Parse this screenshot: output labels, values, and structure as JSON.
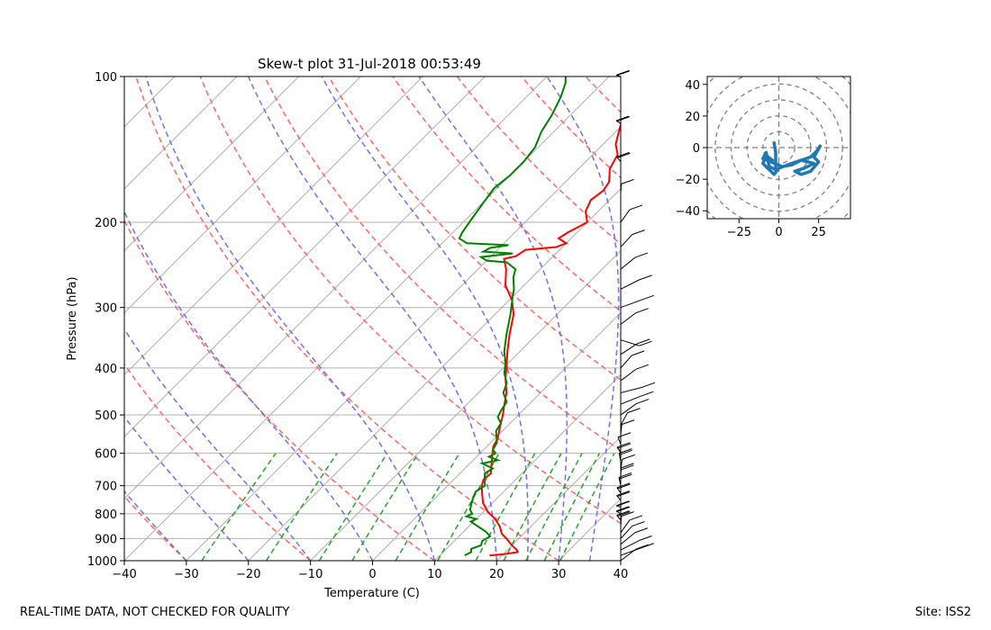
{
  "skewt": {
    "title": "Skew-t plot 31-Jul-2018 00:53:49",
    "xlabel": "Temperature (C)",
    "ylabel": "Pressure (hPa)",
    "xticks": [
      -40,
      -30,
      -20,
      -10,
      0,
      10,
      20,
      30,
      40
    ],
    "xtick_labels": [
      "−40",
      "−30",
      "−20",
      "−10",
      "0",
      "10",
      "20",
      "30",
      "40"
    ],
    "yticks": [
      1000,
      900,
      800,
      700,
      600,
      500,
      400,
      300,
      200,
      100
    ],
    "ytick_labels": [
      "1000",
      "900",
      "800",
      "700",
      "600",
      "500",
      "400",
      "300",
      "200",
      "100"
    ],
    "footer_left": "REAL-TIME DATA, NOT CHECKED FOR QUALITY",
    "footer_right": "Site: ISS2"
  },
  "hodo": {
    "xtick_labels": [
      "−25",
      "0",
      "25"
    ],
    "ytick_labels": [
      "40",
      "20",
      "0",
      "−20",
      "−40"
    ]
  },
  "chart_data": [
    {
      "type": "line",
      "name": "skew-t",
      "title": "Skew-t plot 31-Jul-2018 00:53:49",
      "xlabel": "Temperature (C)",
      "ylabel": "Pressure (hPa)",
      "xlim": [
        -40,
        40
      ],
      "ylim": [
        1000,
        100
      ],
      "grid": true,
      "series": [
        {
          "name": "temperature",
          "color": "#ff0000",
          "points": [
            [
              18,
              975
            ],
            [
              20,
              970
            ],
            [
              22,
              960
            ],
            [
              21.5,
              950
            ],
            [
              20,
              930
            ],
            [
              18,
              900
            ],
            [
              16.5,
              880
            ],
            [
              15,
              850
            ],
            [
              13,
              820
            ],
            [
              10.5,
              790
            ],
            [
              8.5,
              760
            ],
            [
              7,
              730
            ],
            [
              5.5,
              700
            ],
            [
              4.8,
              680
            ],
            [
              5,
              660
            ],
            [
              4,
              640
            ],
            [
              3,
              620
            ],
            [
              2,
              600
            ],
            [
              1,
              580
            ],
            [
              0.5,
              560
            ],
            [
              -0.5,
              540
            ],
            [
              -1.5,
              520
            ],
            [
              -2.5,
              500
            ],
            [
              -4,
              475
            ],
            [
              -5.5,
              450
            ],
            [
              -8,
              420
            ],
            [
              -9.5,
              400
            ],
            [
              -12,
              370
            ],
            [
              -14.5,
              340
            ],
            [
              -17,
              310
            ],
            [
              -19.5,
              290
            ],
            [
              -23,
              270
            ],
            [
              -25.5,
              250
            ],
            [
              -27.5,
              238
            ],
            [
              -26,
              235
            ],
            [
              -25.5,
              228
            ],
            [
              -21,
              225
            ],
            [
              -20,
              221
            ],
            [
              -22,
              216
            ],
            [
              -21.5,
              210
            ],
            [
              -20,
              200
            ],
            [
              -22,
              190
            ],
            [
              -23,
              180
            ],
            [
              -22.5,
              172
            ],
            [
              -23,
              165
            ],
            [
              -25,
              155
            ],
            [
              -26,
              145
            ],
            [
              -28,
              138
            ],
            [
              -29.5,
              130
            ],
            [
              -31.5,
              120
            ],
            [
              -31,
              112
            ],
            [
              -33,
              108
            ],
            [
              -33.5,
              105
            ],
            [
              -33,
              102
            ],
            [
              -36,
              101
            ]
          ]
        },
        {
          "name": "dewpoint",
          "color": "#008000",
          "points": [
            [
              14,
              975
            ],
            [
              14.5,
              960
            ],
            [
              14,
              945
            ],
            [
              15,
              930
            ],
            [
              14.5,
              910
            ],
            [
              15,
              890
            ],
            [
              13.5,
              870
            ],
            [
              11.5,
              850
            ],
            [
              10.5,
              840
            ],
            [
              9.5,
              830
            ],
            [
              10,
              820
            ],
            [
              8,
              810
            ],
            [
              8.5,
              800
            ],
            [
              7.5,
              785
            ],
            [
              7,
              770
            ],
            [
              6,
              740
            ],
            [
              5.5,
              720
            ],
            [
              6,
              700
            ],
            [
              5,
              680
            ],
            [
              4,
              660
            ],
            [
              4.5,
              645
            ],
            [
              2,
              630
            ],
            [
              4,
              620
            ],
            [
              2,
              610
            ],
            [
              2.5,
              600
            ],
            [
              1.5,
              590
            ],
            [
              1,
              570
            ],
            [
              0,
              555
            ],
            [
              -1,
              540
            ],
            [
              -1.5,
              520
            ],
            [
              -3,
              505
            ],
            [
              -3.5,
              490
            ],
            [
              -4,
              470
            ],
            [
              -6,
              450
            ],
            [
              -7,
              430
            ],
            [
              -9,
              410
            ],
            [
              -10.5,
              390
            ],
            [
              -12.5,
              370
            ],
            [
              -15,
              340
            ],
            [
              -17.5,
              310
            ],
            [
              -20,
              285
            ],
            [
              -21,
              275
            ],
            [
              -23,
              260
            ],
            [
              -24,
              250
            ],
            [
              -26.5,
              242
            ],
            [
              -30,
              240
            ],
            [
              -31.5,
              236
            ],
            [
              -27,
              232
            ],
            [
              -32,
              230
            ],
            [
              -31.5,
              226
            ],
            [
              -29,
              223
            ],
            [
              -36,
              221
            ],
            [
              -38,
              216
            ],
            [
              -38.5,
              210
            ],
            [
              -39,
              200
            ],
            [
              -39.5,
              190
            ],
            [
              -40,
              180
            ],
            [
              -40.5,
              170
            ],
            [
              -40,
              160
            ],
            [
              -40,
              150
            ],
            [
              -40.5,
              140
            ],
            [
              -42,
              130
            ],
            [
              -43,
              120
            ],
            [
              -44.5,
              110
            ],
            [
              -46,
              103
            ],
            [
              -47,
              100
            ]
          ]
        }
      ],
      "background_lines": [
        "dry adiabats",
        "moist adiabats",
        "mixing ratio lines",
        "isotherms"
      ],
      "wind_barbs": "right margin, 100-1000 hPa"
    },
    {
      "type": "line",
      "name": "hodograph",
      "xlim": [
        -45,
        45
      ],
      "ylim": [
        -45,
        45
      ],
      "xticks": [
        -25,
        0,
        25
      ],
      "yticks": [
        -40,
        -20,
        0,
        20,
        40
      ],
      "rings": [
        10,
        20,
        30,
        40,
        50,
        60
      ],
      "series": [
        {
          "name": "wind",
          "color": "#1f77b4",
          "points": [
            [
              -4,
              -8
            ],
            [
              -8,
              -5
            ],
            [
              -10,
              -10
            ],
            [
              -6,
              -14
            ],
            [
              -3,
              -17
            ],
            [
              0,
              -13
            ],
            [
              8,
              -10
            ],
            [
              20,
              -6
            ],
            [
              24,
              -2
            ],
            [
              26,
              1
            ],
            [
              22,
              -6
            ],
            [
              25,
              -9
            ],
            [
              20,
              -15
            ],
            [
              14,
              -17
            ],
            [
              10,
              -15
            ],
            [
              16,
              -13
            ],
            [
              22,
              -10
            ],
            [
              14,
              -8
            ],
            [
              8,
              -11
            ],
            [
              2,
              -12
            ],
            [
              -5,
              -9
            ],
            [
              -10,
              -7
            ],
            [
              -8,
              -3
            ],
            [
              -6,
              -12
            ],
            [
              -2,
              -14
            ],
            [
              -2,
              -3
            ],
            [
              -3,
              3
            ]
          ]
        }
      ]
    }
  ]
}
